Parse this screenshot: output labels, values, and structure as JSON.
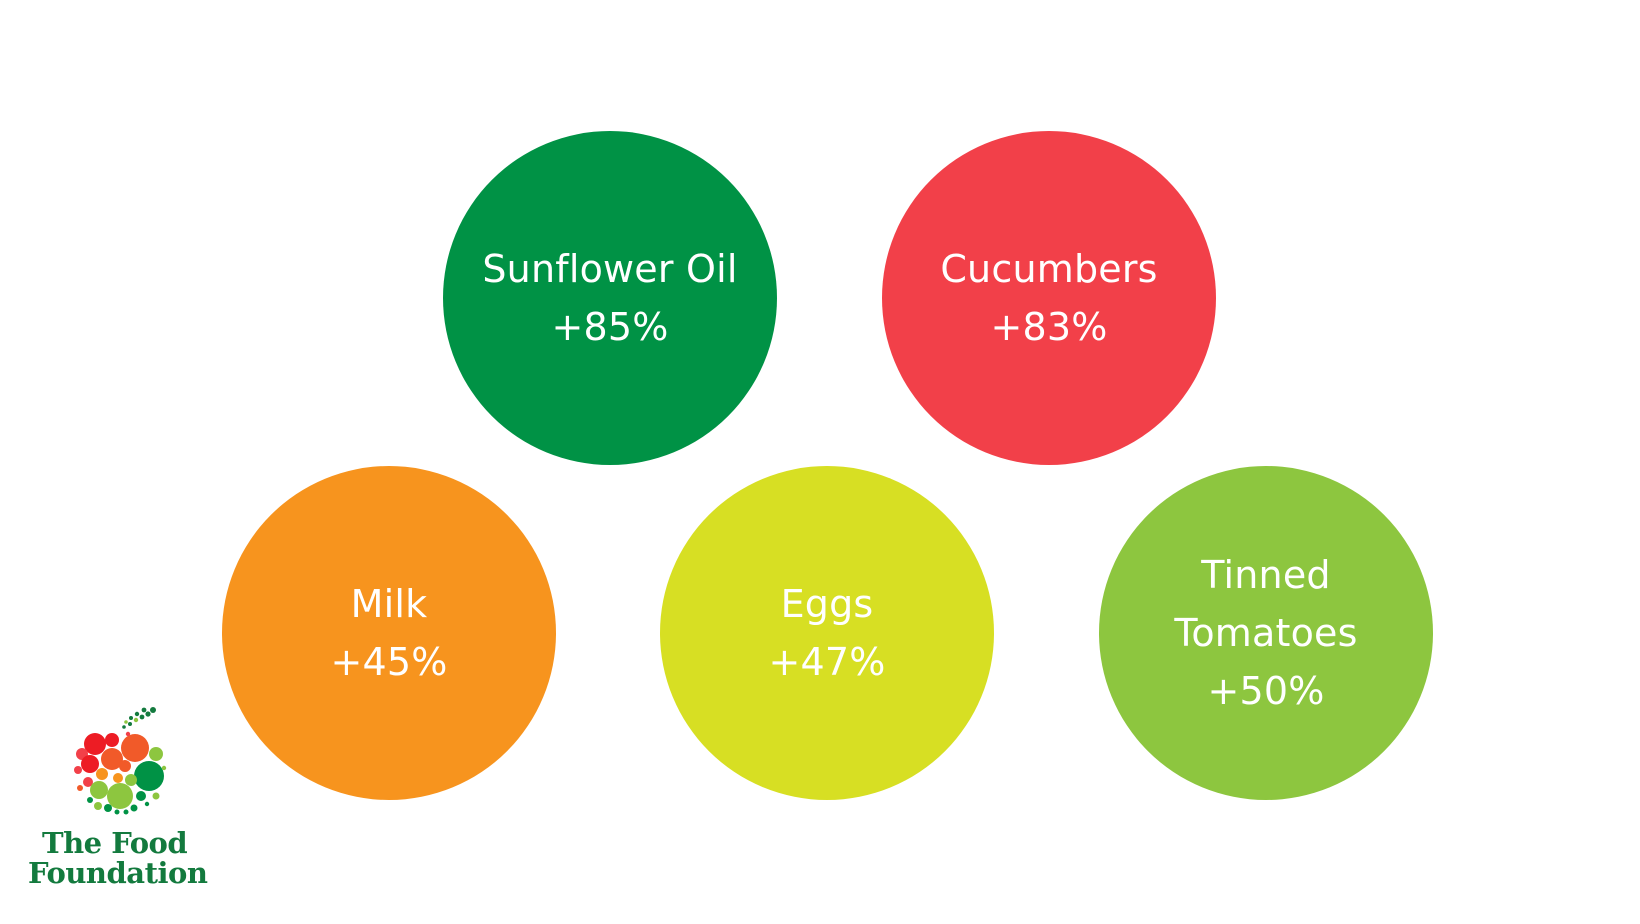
{
  "items": [
    {
      "name": "Sunflower Oil",
      "change": "+85%",
      "color": "#009245"
    },
    {
      "name": "Cucumbers",
      "change": "+83%",
      "color": "#F24049"
    },
    {
      "name": "Milk",
      "change": "+45%",
      "color": "#F7941E"
    },
    {
      "name": "Eggs",
      "change": "+47%",
      "color": "#D7DF23"
    },
    {
      "name": "Tinned Tomatoes",
      "change": "+50%",
      "color": "#8DC63F"
    }
  ],
  "logo": {
    "line1": "The Food",
    "line2": "Foundation",
    "text_color": "#137A3E",
    "icon": "fruit-dots-logo-icon"
  }
}
